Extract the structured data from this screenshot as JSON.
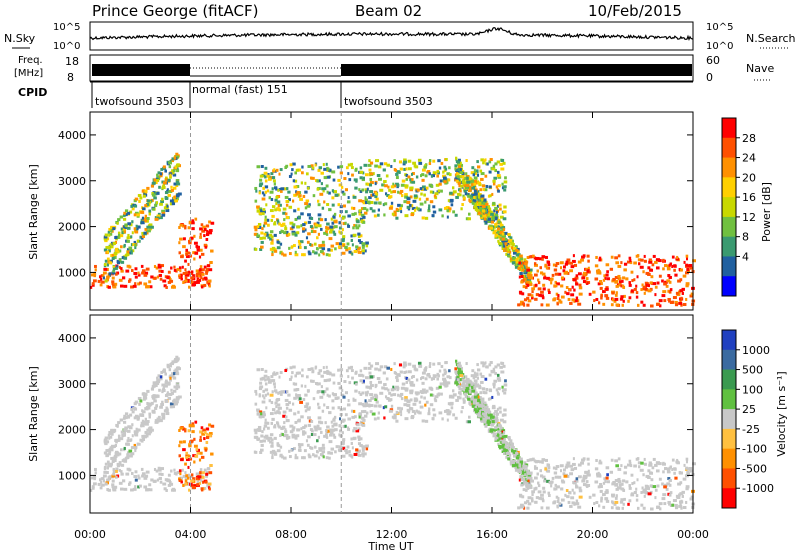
{
  "header": {
    "station": "Prince George (fitACF)",
    "beam": "Beam 02",
    "date": "10/Feb/2015"
  },
  "noise_panel": {
    "left_label": "N.Sky",
    "right_label": "N.Search",
    "ticks_left": [
      "10^5",
      "10^0"
    ],
    "ticks_right": [
      "10^5",
      "10^0"
    ]
  },
  "freq_panel": {
    "left_label_1": "Freq.",
    "left_label_2": "[MHz]",
    "right_label": "Nave",
    "ticks_left": [
      "18",
      "8"
    ],
    "ticks_right": [
      "60",
      "0"
    ]
  },
  "cpid": {
    "label": "CPID",
    "segments": [
      {
        "name": "twofsound 3503",
        "start_hr": 0,
        "end_hr": 4
      },
      {
        "name": "normal (fast) 151",
        "start_hr": 4,
        "end_hr": 10
      },
      {
        "name": "twofsound 3503",
        "start_hr": 10,
        "end_hr": 24
      }
    ]
  },
  "power_panel": {
    "ylabel": "Slant Range [km]",
    "yticks": [
      "4000",
      "3000",
      "2000",
      "1000"
    ],
    "cbar_label": "Power [dB]",
    "cbar_ticks": [
      "28",
      "24",
      "20",
      "16",
      "12",
      "8",
      "4"
    ],
    "cbar_colors": [
      "#ff0000",
      "#ff5000",
      "#ff9000",
      "#ffd000",
      "#c8d800",
      "#70c040",
      "#3a9a70",
      "#2060a0",
      "#0000ff"
    ]
  },
  "velocity_panel": {
    "ylabel": "Slant Range [km]",
    "yticks": [
      "4000",
      "3000",
      "2000",
      "1000"
    ],
    "cbar_label": "Velocity [m s⁻¹]",
    "cbar_ticks": [
      "1000",
      "500",
      "100",
      "25",
      "-25",
      "-100",
      "-500",
      "-1000"
    ],
    "cbar_colors": [
      "#2040c0",
      "#3a6aa0",
      "#3a9a50",
      "#60c040",
      "#c8c8c8",
      "#ffc040",
      "#ff9000",
      "#ff5000",
      "#ff0000"
    ]
  },
  "xaxis": {
    "label": "Time UT",
    "ticks": [
      "00:00",
      "04:00",
      "08:00",
      "12:00",
      "16:00",
      "20:00",
      "00:00"
    ]
  },
  "chart_data": {
    "type": "heatmap",
    "xlim_hours": [
      0,
      24
    ],
    "ylim_km": [
      180,
      4500
    ],
    "mode_change_hours": [
      4,
      10
    ],
    "regions": [
      {
        "name": "near-range-main",
        "t": [
          0,
          4.8
        ],
        "r": [
          700,
          1200
        ],
        "panel": "power",
        "level": "high"
      },
      {
        "name": "diagonal-streaks-early",
        "t": [
          0.5,
          3.5
        ],
        "r": [
          1200,
          3400
        ],
        "panel": "both",
        "level": "mid"
      },
      {
        "name": "morning-feature",
        "t": [
          3.5,
          4.8
        ],
        "r": [
          700,
          2200
        ],
        "panel": "both",
        "level": "high"
      },
      {
        "name": "midday-patches",
        "t": [
          6.5,
          11
        ],
        "r": [
          1400,
          3400
        ],
        "panel": "both",
        "level": "mid"
      },
      {
        "name": "afternoon-band",
        "t": [
          11,
          16.5
        ],
        "r": [
          2200,
          3500
        ],
        "panel": "both",
        "level": "mid"
      },
      {
        "name": "evening-descending",
        "t": [
          14.5,
          17.5
        ],
        "r": [
          800,
          3500
        ],
        "panel": "both",
        "level": "mid"
      },
      {
        "name": "night-near-range",
        "t": [
          17,
          24
        ],
        "r": [
          300,
          1400
        ],
        "panel": "power",
        "level": "high"
      }
    ]
  }
}
